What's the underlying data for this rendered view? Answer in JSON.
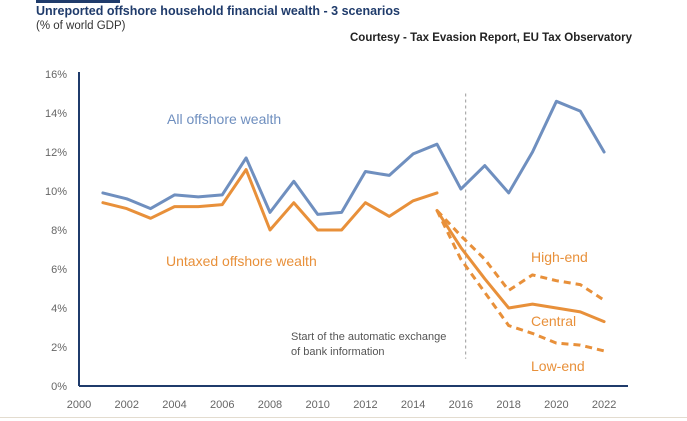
{
  "header": {
    "title": "Unreported offshore household financial wealth - 3 scenarios",
    "subtitle": "(% of world GDP)",
    "courtesy": "Courtesy - Tax Evasion Report, EU Tax Observatory"
  },
  "colors": {
    "blue": "#6f8fbf",
    "orange": "#e8903a",
    "axis": "#1f3b6b",
    "label_gray": "#666666"
  },
  "chart_data": {
    "type": "line",
    "title": "Unreported offshore household financial wealth - 3 scenarios",
    "subtitle": "(% of world GDP)",
    "xlabel": "",
    "ylabel": "",
    "xlim": [
      2000,
      2023
    ],
    "ylim": [
      0,
      16
    ],
    "x_ticks": [
      2000,
      2002,
      2004,
      2006,
      2008,
      2010,
      2012,
      2014,
      2016,
      2018,
      2020,
      2022
    ],
    "y_ticks": [
      0,
      2,
      4,
      6,
      8,
      10,
      12,
      14,
      16
    ],
    "y_tick_labels": [
      "0%",
      "2%",
      "4%",
      "6%",
      "8%",
      "10%",
      "12%",
      "14%",
      "16%"
    ],
    "grid": false,
    "series": [
      {
        "name": "All offshore wealth",
        "color": "#6f8fbf",
        "style": "solid",
        "x": [
          2001,
          2002,
          2003,
          2004,
          2005,
          2006,
          2007,
          2008,
          2009,
          2010,
          2011,
          2012,
          2013,
          2014,
          2015,
          2016,
          2017,
          2018,
          2019,
          2020,
          2021,
          2022
        ],
        "y": [
          9.9,
          9.6,
          9.1,
          9.8,
          9.7,
          9.8,
          11.7,
          8.9,
          10.5,
          8.8,
          8.9,
          11.0,
          10.8,
          11.9,
          12.4,
          10.1,
          11.3,
          9.9,
          12.0,
          14.6,
          14.1,
          12.0
        ]
      },
      {
        "name": "Untaxed offshore wealth",
        "color": "#e8903a",
        "style": "solid",
        "x": [
          2001,
          2002,
          2003,
          2004,
          2005,
          2006,
          2007,
          2008,
          2009,
          2010,
          2011,
          2012,
          2013,
          2014,
          2015
        ],
        "y": [
          9.4,
          9.1,
          8.6,
          9.2,
          9.2,
          9.3,
          11.1,
          8.0,
          9.4,
          8.0,
          8.0,
          9.4,
          8.7,
          9.5,
          9.9
        ]
      },
      {
        "name": "High-end",
        "color": "#e8903a",
        "style": "dashed",
        "x": [
          2015,
          2016,
          2017,
          2018,
          2019,
          2020,
          2021,
          2022
        ],
        "y": [
          9.0,
          7.7,
          6.5,
          4.9,
          5.7,
          5.4,
          5.2,
          4.4
        ]
      },
      {
        "name": "Central",
        "color": "#e8903a",
        "style": "solid",
        "x": [
          2015,
          2016,
          2017,
          2018,
          2019,
          2020,
          2021,
          2022
        ],
        "y": [
          9.0,
          7.1,
          5.5,
          4.0,
          4.2,
          4.0,
          3.8,
          3.3
        ]
      },
      {
        "name": "Low-end",
        "color": "#e8903a",
        "style": "dashed",
        "x": [
          2015,
          2016,
          2017,
          2018,
          2019,
          2020,
          2021,
          2022
        ],
        "y": [
          9.0,
          6.5,
          4.8,
          3.1,
          2.7,
          2.2,
          2.1,
          1.8
        ]
      }
    ],
    "reference_line": {
      "x": 2016.2,
      "style": "dashed"
    },
    "annotations": {
      "all_offshore": "All offshore wealth",
      "untaxed": "Untaxed offshore wealth",
      "high_end": "High-end",
      "central": "Central",
      "low_end": "Low-end",
      "exchange_line1": "Start of the automatic exchange",
      "exchange_line2": "of bank information"
    }
  }
}
